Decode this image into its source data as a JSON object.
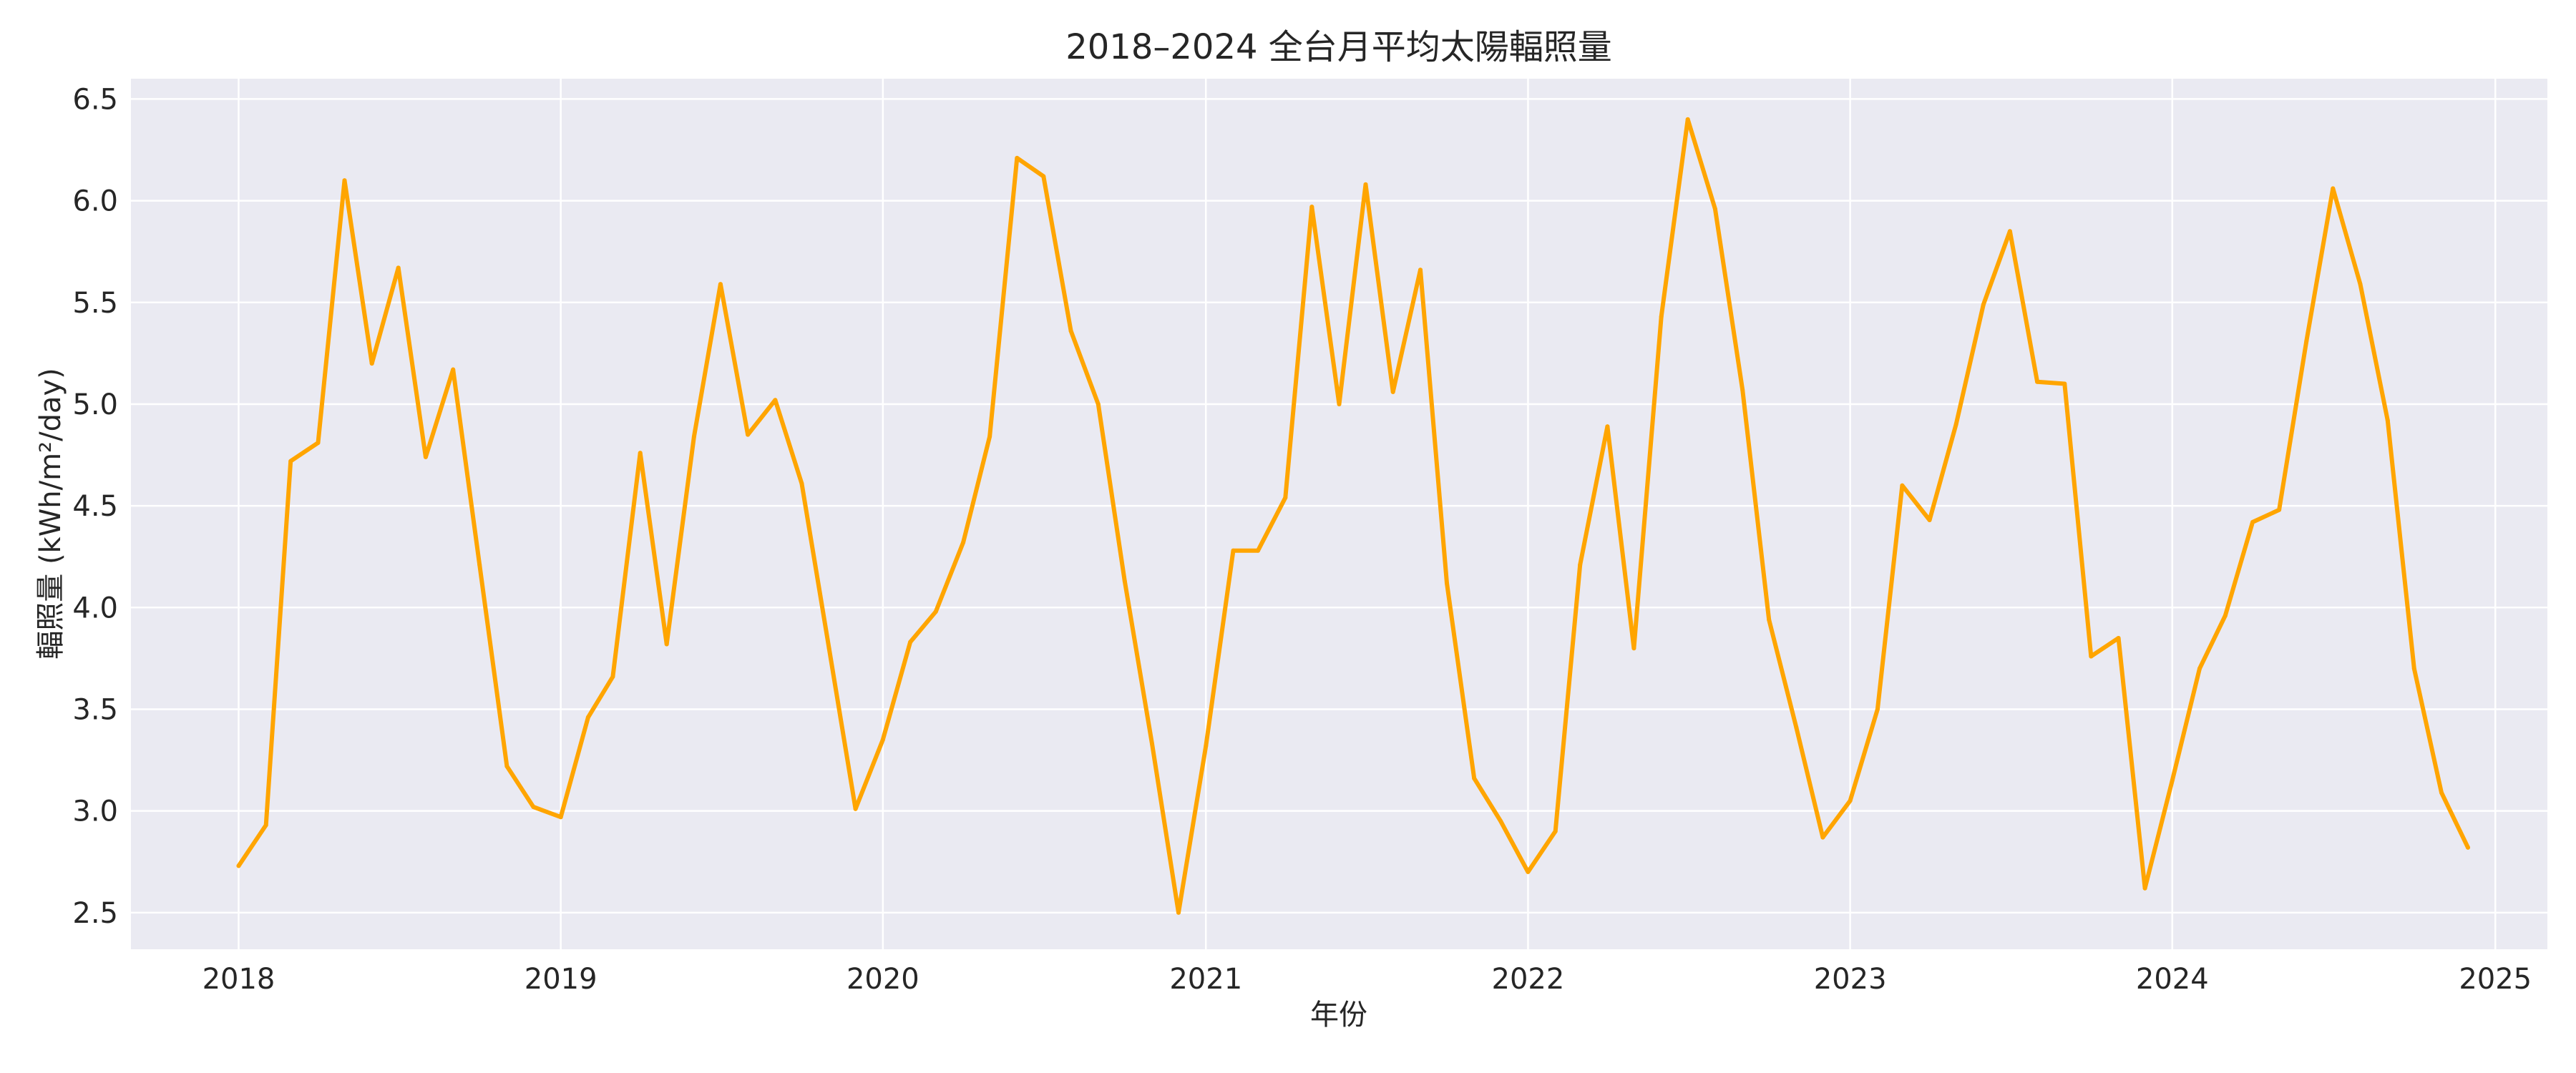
{
  "chart_data": {
    "type": "line",
    "title": "2018–2024 全台月平均太陽輻照量",
    "xlabel": "年份",
    "ylabel": "輻照量 (kWh/m²/day)",
    "xlim": [
      "2017-09-01",
      "2025-03-01"
    ],
    "ylim": [
      2.32,
      6.6
    ],
    "x_ticks": [
      "2018",
      "2019",
      "2020",
      "2021",
      "2022",
      "2023",
      "2024",
      "2025"
    ],
    "y_ticks": [
      "2.5",
      "3.0",
      "3.5",
      "4.0",
      "4.5",
      "5.0",
      "5.5",
      "6.0",
      "6.5"
    ],
    "grid": true,
    "legend": false,
    "colors": {
      "line": "#FFA500",
      "plot_bg": "#EAEAF2",
      "grid": "#FFFFFF"
    },
    "series": [
      {
        "x": [
          "2018-01",
          "2018-02",
          "2018-03",
          "2018-04",
          "2018-05",
          "2018-06",
          "2018-07",
          "2018-08",
          "2018-09",
          "2018-10",
          "2018-11",
          "2018-12",
          "2019-01",
          "2019-02",
          "2019-03",
          "2019-04",
          "2019-05",
          "2019-06",
          "2019-07",
          "2019-08",
          "2019-09",
          "2019-10",
          "2019-11",
          "2019-12",
          "2020-01",
          "2020-02",
          "2020-03",
          "2020-04",
          "2020-05",
          "2020-06",
          "2020-07",
          "2020-08",
          "2020-09",
          "2020-10",
          "2020-11",
          "2020-12",
          "2021-01",
          "2021-02",
          "2021-03",
          "2021-04",
          "2021-05",
          "2021-06",
          "2021-07",
          "2021-08",
          "2021-09",
          "2021-10",
          "2021-11",
          "2021-12",
          "2022-01",
          "2022-02",
          "2022-03",
          "2022-04",
          "2022-05",
          "2022-06",
          "2022-07",
          "2022-08",
          "2022-09",
          "2022-10",
          "2022-11",
          "2022-12",
          "2023-01",
          "2023-02",
          "2023-03",
          "2023-04",
          "2023-05",
          "2023-06",
          "2023-07",
          "2023-08",
          "2023-09",
          "2023-10",
          "2023-11",
          "2023-12",
          "2024-01",
          "2024-02",
          "2024-03",
          "2024-04",
          "2024-05",
          "2024-06",
          "2024-07",
          "2024-08",
          "2024-09",
          "2024-10",
          "2024-11",
          "2024-12"
        ],
        "values": [
          2.73,
          2.93,
          4.72,
          4.81,
          6.1,
          5.2,
          5.67,
          4.74,
          5.17,
          4.21,
          3.22,
          3.02,
          2.97,
          3.46,
          3.66,
          4.76,
          3.82,
          4.84,
          5.59,
          4.85,
          5.02,
          4.61,
          3.8,
          3.01,
          3.35,
          3.83,
          3.98,
          4.32,
          4.84,
          6.21,
          6.12,
          5.36,
          5.0,
          4.13,
          3.33,
          2.5,
          3.32,
          4.28,
          4.28,
          4.54,
          5.97,
          5.0,
          6.08,
          5.06,
          5.66,
          4.12,
          3.16,
          2.95,
          2.7,
          2.9,
          4.21,
          4.89,
          3.8,
          5.43,
          6.4,
          5.96,
          5.07,
          3.94,
          3.41,
          2.87,
          3.05,
          3.5,
          4.6,
          4.43,
          4.9,
          5.49,
          5.85,
          5.11,
          5.1,
          3.76,
          3.85,
          2.62,
          3.15,
          3.7,
          3.96,
          4.42,
          4.48,
          5.31,
          6.06,
          5.59,
          4.92,
          3.7,
          3.09,
          2.82
        ]
      }
    ]
  }
}
